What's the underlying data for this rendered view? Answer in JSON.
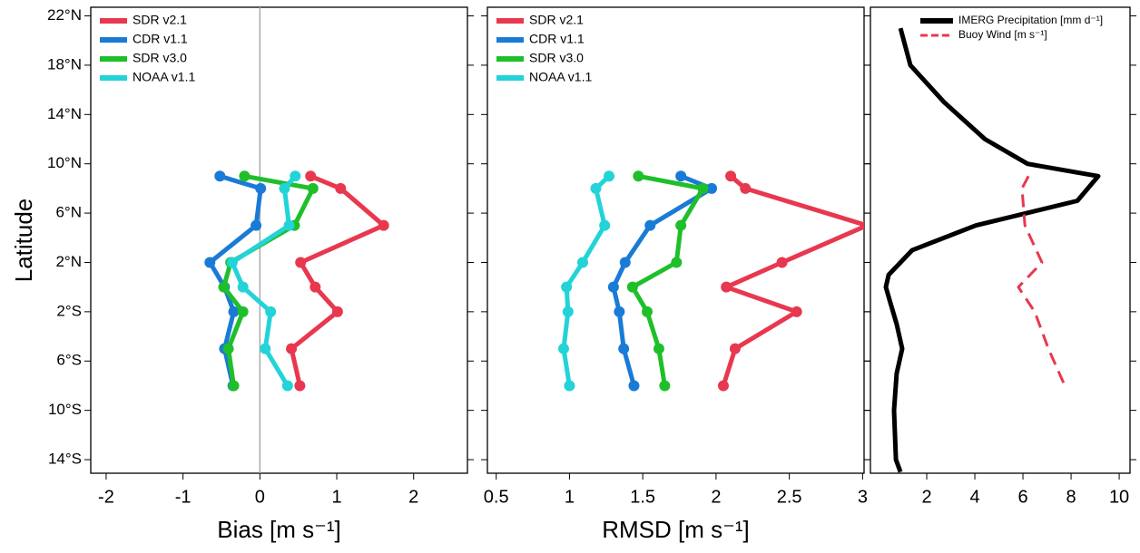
{
  "chart_data": [
    {
      "type": "line",
      "ylabel": "Latitude",
      "xlabel": "Bias [m s⁻¹]",
      "ylim": [
        -15.1,
        22.7
      ],
      "yticks": [
        {
          "value": 22,
          "label": "22°N"
        },
        {
          "value": 18,
          "label": "18°N"
        },
        {
          "value": 14,
          "label": "14°N"
        },
        {
          "value": 10,
          "label": "10°N"
        },
        {
          "value": 6,
          "label": "6°N"
        },
        {
          "value": 2,
          "label": "2°N"
        },
        {
          "value": -2,
          "label": "2°S"
        },
        {
          "value": -6,
          "label": "6°S"
        },
        {
          "value": -10,
          "label": "10°S"
        },
        {
          "value": -14,
          "label": "14°S"
        }
      ],
      "xlim": [
        -2.2,
        2.7
      ],
      "xticks": [
        -2,
        -1,
        0,
        1,
        2
      ],
      "vline": 0,
      "legend": "upper left",
      "y": [
        9,
        8,
        5,
        2,
        0,
        -2,
        -5,
        -8
      ],
      "series": [
        {
          "name": "SDR v2.1",
          "color": "#e8384f",
          "marker": true,
          "values": [
            0.66,
            1.05,
            1.61,
            0.53,
            0.72,
            1.01,
            0.41,
            0.52
          ]
        },
        {
          "name": "CDR v1.1",
          "color": "#1a7bd6",
          "marker": true,
          "values": [
            -0.52,
            0.01,
            -0.05,
            -0.65,
            -0.46,
            -0.34,
            -0.46,
            -0.35
          ]
        },
        {
          "name": "SDR v3.0",
          "color": "#1fbf2a",
          "marker": true,
          "values": [
            -0.2,
            0.69,
            0.45,
            -0.38,
            -0.47,
            -0.22,
            -0.41,
            -0.34
          ]
        },
        {
          "name": "NOAA v1.1",
          "color": "#22d3d8",
          "marker": true,
          "values": [
            0.46,
            0.32,
            0.38,
            -0.36,
            -0.22,
            0.14,
            0.07,
            0.36
          ]
        }
      ]
    },
    {
      "type": "line",
      "xlabel": "RMSD [m s⁻¹]",
      "xlim": [
        0.44,
        3.01
      ],
      "xticks": [
        0.5,
        1,
        1.5,
        2,
        2.5,
        3
      ],
      "legend": "upper left",
      "y": [
        9,
        8,
        5,
        2,
        0,
        -2,
        -5,
        -8
      ],
      "series": [
        {
          "name": "SDR v2.1",
          "color": "#e8384f",
          "marker": true,
          "values": [
            2.1,
            2.2,
            3.03,
            2.45,
            2.07,
            2.55,
            2.13,
            2.05
          ]
        },
        {
          "name": "CDR v1.1",
          "color": "#1a7bd6",
          "marker": true,
          "values": [
            1.76,
            1.97,
            1.55,
            1.38,
            1.3,
            1.34,
            1.37,
            1.44
          ]
        },
        {
          "name": "SDR v3.0",
          "color": "#1fbf2a",
          "marker": true,
          "values": [
            1.47,
            1.91,
            1.76,
            1.73,
            1.43,
            1.53,
            1.61,
            1.65
          ]
        },
        {
          "name": "NOAA v1.1",
          "color": "#22d3d8",
          "marker": true,
          "values": [
            1.27,
            1.18,
            1.24,
            1.09,
            0.98,
            0.99,
            0.96,
            1.0
          ]
        }
      ]
    },
    {
      "type": "line",
      "xlim": [
        -0.34,
        10.45
      ],
      "xticks": [
        2,
        4,
        6,
        8,
        10
      ],
      "legend": "upper right",
      "series": [
        {
          "name": "IMERG Precipitation [mm d⁻¹]",
          "color": "#000000",
          "y": [
            21,
            18,
            15,
            12,
            10,
            9,
            7,
            5,
            3,
            1,
            0,
            -1,
            -3,
            -5,
            -7,
            -10,
            -14,
            -15
          ],
          "values": [
            0.91,
            1.32,
            2.72,
            4.42,
            6.19,
            9.13,
            8.26,
            4.04,
            1.4,
            0.42,
            0.3,
            0.45,
            0.75,
            0.98,
            0.75,
            0.64,
            0.72,
            0.91
          ]
        },
        {
          "name": "Buoy Wind [m s⁻¹]",
          "color": "#e8384f",
          "dash": true,
          "y": [
            9,
            8,
            5,
            2,
            0,
            -2,
            -5,
            -8
          ],
          "values": [
            6.23,
            5.96,
            6.08,
            6.79,
            5.81,
            6.49,
            7.06,
            7.74
          ]
        }
      ]
    }
  ]
}
